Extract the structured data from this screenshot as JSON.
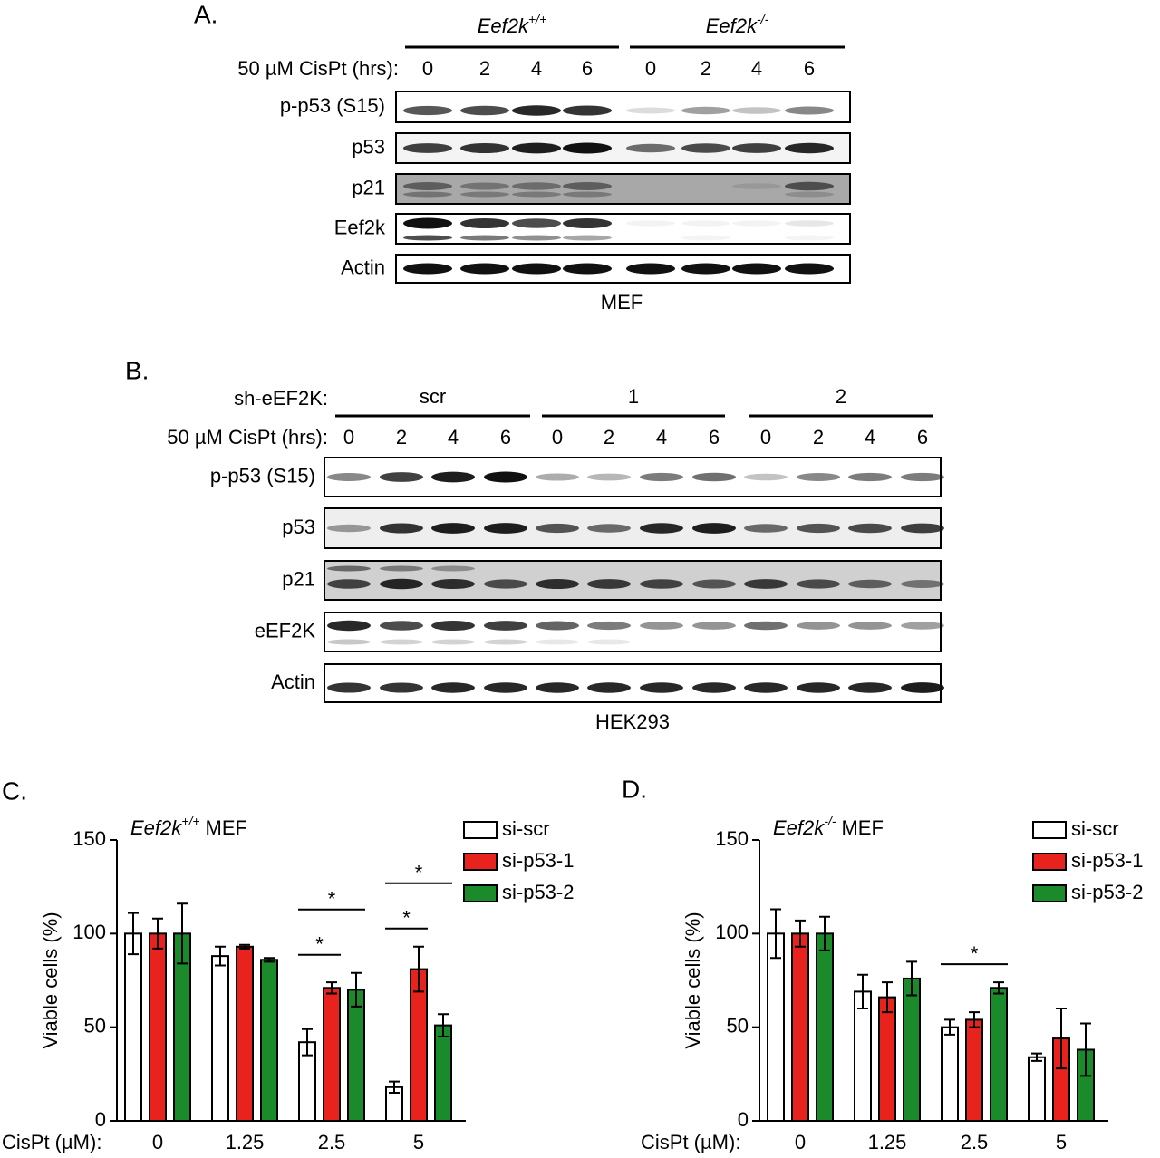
{
  "panel_a": {
    "label": "A.",
    "groups": [
      {
        "gene": "Eef2k",
        "genotype": "+/+"
      },
      {
        "gene": "Eef2k",
        "genotype": "-/-"
      }
    ],
    "treatment_label": "50 µM CisPt (hrs):",
    "timepoints": [
      "0",
      "2",
      "4",
      "6",
      "0",
      "2",
      "4",
      "6"
    ],
    "rows": [
      "p-p53 (S15)",
      "p53",
      "p21",
      "Eef2k",
      "Actin"
    ],
    "cell_line": "MEF"
  },
  "panel_b": {
    "label": "B.",
    "sh_label": "sh-eEF2K:",
    "groups": [
      "scr",
      "1",
      "2"
    ],
    "treatment_label": "50 µM CisPt (hrs):",
    "timepoints": [
      "0",
      "2",
      "4",
      "6",
      "0",
      "2",
      "4",
      "6",
      "0",
      "2",
      "4",
      "6"
    ],
    "rows": [
      "p-p53 (S15)",
      "p53",
      "p21",
      "eEF2K",
      "Actin"
    ],
    "cell_line": "HEK293"
  },
  "chart_data": [
    {
      "type": "bar",
      "panel_label": "C.",
      "title_gene": "Eef2k",
      "title_genotype": "+/+",
      "title_suffix": "MEF",
      "x_label": "CisPt (µM):",
      "y_label": "Viable cells (%)",
      "categories": [
        "0",
        "1.25",
        "2.5",
        "5"
      ],
      "ylim": [
        0,
        150
      ],
      "yticks": [
        0,
        50,
        100,
        150
      ],
      "series": [
        {
          "name": "si-scr",
          "color": "#ffffff",
          "values": [
            100,
            88,
            42,
            18
          ],
          "errors": [
            11,
            5,
            7,
            3
          ]
        },
        {
          "name": "si-p53-1",
          "color": "#e8231e",
          "values": [
            100,
            93,
            71,
            81
          ],
          "errors": [
            8,
            1,
            3,
            12
          ]
        },
        {
          "name": "si-p53-2",
          "color": "#1a8a2a",
          "values": [
            100,
            86,
            70,
            51
          ],
          "errors": [
            16,
            1,
            9,
            6
          ]
        }
      ],
      "significance": [
        {
          "label": "*",
          "category": 2,
          "between": [
            0,
            1
          ]
        },
        {
          "label": "*",
          "category": 2,
          "between": [
            0,
            2
          ]
        },
        {
          "label": "*",
          "category": 3,
          "between": [
            0,
            1
          ]
        },
        {
          "label": "*",
          "category": 3,
          "between": [
            0,
            2
          ]
        }
      ]
    },
    {
      "type": "bar",
      "panel_label": "D.",
      "title_gene": "Eef2k",
      "title_genotype": "-/-",
      "title_suffix": "MEF",
      "x_label": "CisPt (µM):",
      "y_label": "Viable cells (%)",
      "categories": [
        "0",
        "1.25",
        "2.5",
        "5"
      ],
      "ylim": [
        0,
        150
      ],
      "yticks": [
        0,
        50,
        100,
        150
      ],
      "series": [
        {
          "name": "si-scr",
          "color": "#ffffff",
          "values": [
            100,
            69,
            50,
            34
          ],
          "errors": [
            13,
            9,
            4,
            2
          ]
        },
        {
          "name": "si-p53-1",
          "color": "#e8231e",
          "values": [
            100,
            66,
            54,
            44
          ],
          "errors": [
            7,
            8,
            4,
            16
          ]
        },
        {
          "name": "si-p53-2",
          "color": "#1a8a2a",
          "values": [
            100,
            76,
            71,
            38
          ],
          "errors": [
            9,
            9,
            3,
            14
          ]
        }
      ],
      "significance": [
        {
          "label": "*",
          "category": 2,
          "between": [
            0,
            2
          ]
        }
      ]
    }
  ]
}
